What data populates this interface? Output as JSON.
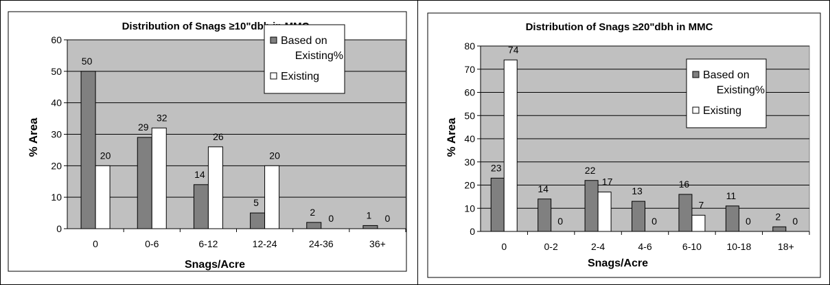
{
  "chart_data": [
    {
      "type": "bar",
      "title": "Distribution of Snags ≥10\"dbh in MMC",
      "xlabel": "Snags/Acre",
      "ylabel": "% Area",
      "categories": [
        "0",
        "0-6",
        "6-12",
        "12-24",
        "24-36",
        "36+"
      ],
      "series": [
        {
          "name": "Based on Existing%",
          "color": "#808080",
          "values": [
            50,
            29,
            14,
            5,
            2,
            1
          ]
        },
        {
          "name": "Existing",
          "color": "#ffffff",
          "values": [
            20,
            32,
            26,
            20,
            0,
            0
          ]
        }
      ],
      "ylim": [
        0,
        60
      ],
      "yticks": [
        0,
        10,
        20,
        30,
        40,
        50,
        60
      ],
      "grid": true,
      "legend": "top-right",
      "legend_lines": [
        [
          "Based on",
          "Existing%"
        ],
        [
          "Existing"
        ]
      ],
      "plot_bg": "#c0c0c0"
    },
    {
      "type": "bar",
      "title": "Distribution of Snags ≥20\"dbh in MMC",
      "xlabel": "Snags/Acre",
      "ylabel": "% Area",
      "categories": [
        "0",
        "0-2",
        "2-4",
        "4-6",
        "6-10",
        "10-18",
        "18+"
      ],
      "series": [
        {
          "name": "Based on Existing%",
          "color": "#808080",
          "values": [
            23,
            14,
            22,
            13,
            16,
            11,
            2
          ]
        },
        {
          "name": "Existing",
          "color": "#ffffff",
          "values": [
            74,
            0,
            17,
            0,
            7,
            0,
            0
          ]
        }
      ],
      "ylim": [
        0,
        80
      ],
      "yticks": [
        0,
        10,
        20,
        30,
        40,
        50,
        60,
        70,
        80
      ],
      "grid": true,
      "legend": "top-right",
      "legend_lines": [
        [
          "Based on",
          "Existing%"
        ],
        [
          "Existing"
        ]
      ],
      "plot_bg": "#c0c0c0"
    }
  ]
}
